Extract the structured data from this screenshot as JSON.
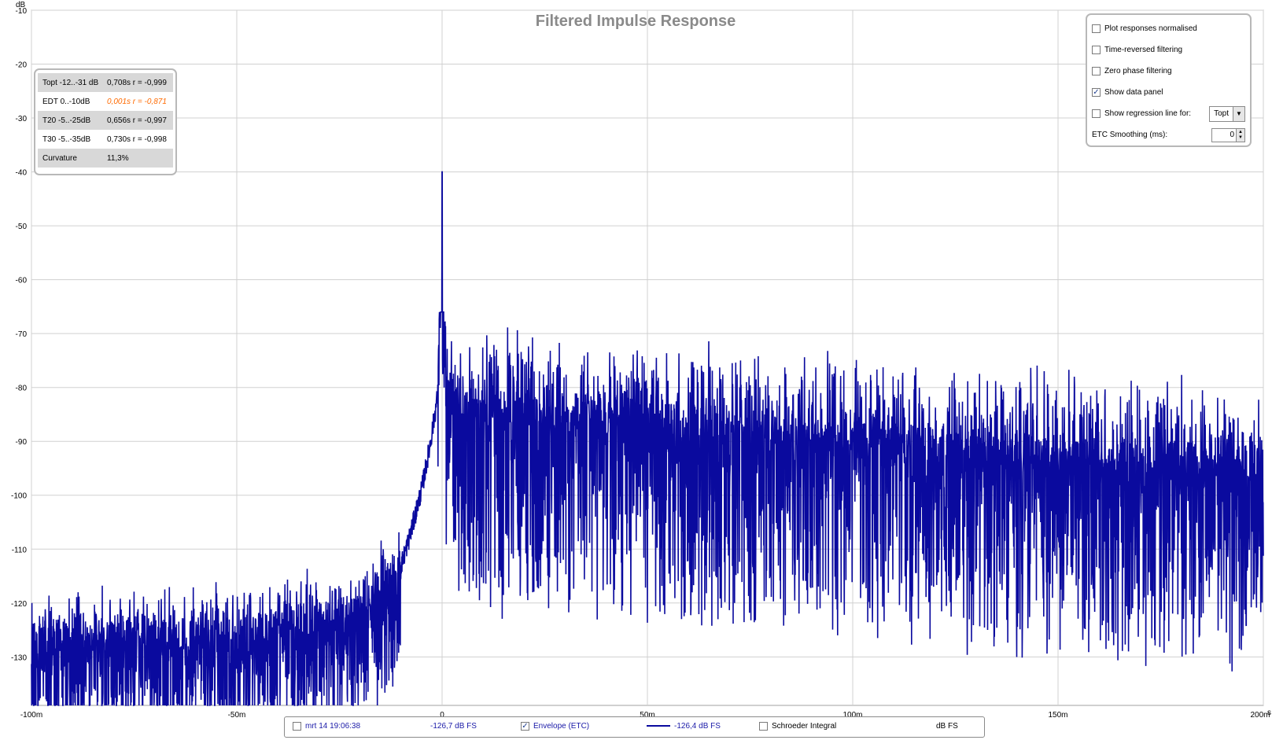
{
  "chart_data": {
    "type": "line",
    "title": "Filtered Impulse Response",
    "ylabel": "dB",
    "xunit": "s",
    "xlim": [
      -0.1,
      0.2
    ],
    "ylim": [
      -139,
      -10
    ],
    "yticks": [
      -10,
      -20,
      -30,
      -40,
      -50,
      -60,
      -70,
      -80,
      -90,
      -100,
      -110,
      -120,
      -130
    ],
    "xticks": [
      -0.1,
      -0.05,
      0,
      0.05,
      0.1,
      0.15,
      0.2
    ],
    "xtick_labels": [
      "-100m",
      "-50m",
      "0",
      "50m",
      "100m",
      "150m",
      "200m"
    ],
    "grid": true,
    "series": [
      {
        "name": "Envelope (ETC)",
        "color": "#0a0a9e",
        "envelope": {
          "x": [
            -0.1,
            -0.08,
            -0.05,
            -0.03,
            -0.02,
            -0.015,
            -0.01,
            -0.008,
            -0.005,
            -0.003,
            -0.001,
            0,
            0.001,
            0.003,
            0.006,
            0.01,
            0.02,
            0.03,
            0.04,
            0.05,
            0.06,
            0.08,
            0.1,
            0.12,
            0.15,
            0.18,
            0.2
          ],
          "y": [
            -126,
            -126,
            -126,
            -123,
            -121,
            -118,
            -113,
            -108,
            -99,
            -91,
            -81,
            -40,
            -78,
            -82,
            -83,
            -84,
            -84,
            -85,
            -85,
            -86,
            -87,
            -88,
            -89,
            -90,
            -92,
            -93,
            -94
          ]
        },
        "noise_spread_db": [
          -139,
          -66
        ],
        "peak": {
          "x": 0,
          "y": -40
        }
      }
    ],
    "notes": [
      "mrt 14 19:06:38"
    ]
  },
  "data_panel": {
    "rows": [
      {
        "label": "Topt -12..-31 dB",
        "value": "0,708s  r = -0,999",
        "highlight": false
      },
      {
        "label": "EDT  0..-10dB",
        "value": "0,001s  r = -0,871",
        "highlight": true
      },
      {
        "label": "T20 -5..-25dB",
        "value": "0,656s  r = -0,997",
        "highlight": false
      },
      {
        "label": "T30 -5..-35dB",
        "value": "0,730s  r = -0,998",
        "highlight": false
      },
      {
        "label": "Curvature",
        "value": "11,3%",
        "highlight": false
      }
    ]
  },
  "controls": {
    "plot_normalised": {
      "label": "Plot responses normalised",
      "checked": false
    },
    "time_reversed": {
      "label": "Time-reversed filtering",
      "checked": false
    },
    "zero_phase": {
      "label": "Zero phase filtering",
      "checked": false
    },
    "show_data_panel": {
      "label": "Show data panel",
      "checked": true
    },
    "regression": {
      "label": "Show regression line for:",
      "checked": false,
      "selected": "Topt"
    },
    "etc_smoothing": {
      "label": "ETC Smoothing (ms):",
      "value": "0"
    }
  },
  "legend": {
    "measurement": {
      "label": "mrt 14 19:06:38",
      "value": "-126,7 dB FS",
      "checked": false
    },
    "envelope": {
      "label": "Envelope (ETC)",
      "value": "-126,4 dB FS",
      "checked": true
    },
    "schroeder": {
      "label": "Schroeder Integral",
      "value": "dB FS",
      "checked": false
    }
  }
}
